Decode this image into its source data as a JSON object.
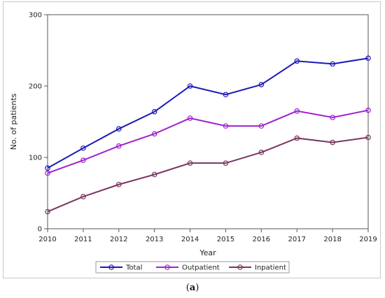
{
  "chart_data": {
    "type": "line",
    "title": "",
    "xlabel": "Year",
    "ylabel": "No. of patients",
    "x": [
      2010,
      2011,
      2012,
      2013,
      2014,
      2015,
      2016,
      2017,
      2018,
      2019
    ],
    "xlim": [
      2010,
      2019
    ],
    "ylim": [
      0,
      300
    ],
    "yticks": [
      0,
      100,
      200,
      300
    ],
    "grid": false,
    "legend": "bottom",
    "series": [
      {
        "name": "Total",
        "color": "#1a1ab8",
        "values": [
          85,
          113,
          140,
          164,
          200,
          188,
          202,
          235,
          231,
          239
        ]
      },
      {
        "name": "Outpatient",
        "color": "#a020d0",
        "values": [
          78,
          96,
          116,
          133,
          155,
          144,
          144,
          165,
          156,
          166
        ]
      },
      {
        "name": "Inpatient",
        "color": "#7a3462",
        "values": [
          24,
          45,
          62,
          76,
          92,
          92,
          107,
          127,
          121,
          128
        ]
      }
    ]
  },
  "caption": {
    "open": "(",
    "letter": "a",
    "close": ")"
  }
}
